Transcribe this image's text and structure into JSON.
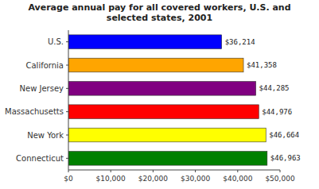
{
  "chart_data": {
    "type": "bar",
    "orientation": "horizontal",
    "title": "Average annual pay for all covered workers, U.S. and\nselected states, 2001",
    "categories": [
      "U.S.",
      "California",
      "New Jersey",
      "Massachusetts",
      "New York",
      "Connecticut"
    ],
    "values": [
      36214,
      41358,
      44285,
      44976,
      46664,
      46963
    ],
    "value_labels": [
      "$36,214",
      "$41,358",
      "$44,285",
      "$44,976",
      "$46,664",
      "$46,963"
    ],
    "data_labels": true,
    "colors": [
      "#0000ff",
      "#ffa500",
      "#800080",
      "#ff0000",
      "#ffff00",
      "#008000"
    ],
    "xlim": [
      0,
      50000
    ],
    "xticks": [
      {
        "value": 0,
        "label": "$0"
      },
      {
        "value": 10000,
        "label": "$10,000"
      },
      {
        "value": 20000,
        "label": "$20,000"
      },
      {
        "value": 30000,
        "label": "$30,000"
      },
      {
        "value": 40000,
        "label": "$40,000"
      },
      {
        "value": 50000,
        "label": "$50,000"
      }
    ],
    "grid": false
  }
}
